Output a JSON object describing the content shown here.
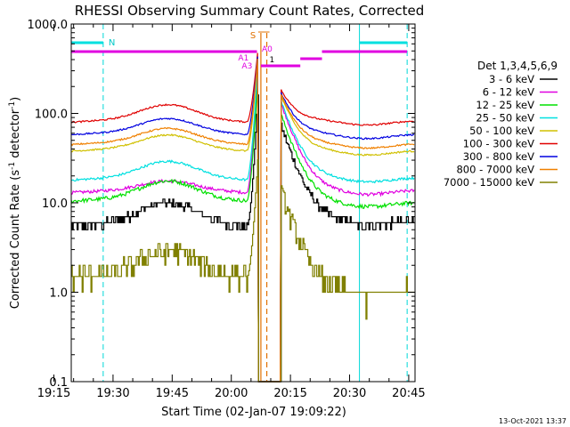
{
  "chart_data": {
    "type": "line",
    "title": "RHESSI Observing Summary Count Rates, Corrected",
    "xlabel": "Start Time (02-Jan-07 19:09:22)",
    "ylabel_main": "Corrected Count Rate (s",
    "ylabel_sup1": "-1",
    "ylabel_mid": " detector",
    "ylabel_sup2": "-1",
    "ylabel_end": ")",
    "footer": "13-Oct-2021 13:37",
    "y_scale": "log",
    "ylim": [
      0.1,
      1000
    ],
    "xlim_minutes": [
      19.4,
      46.6
    ],
    "x_ticks": [
      {
        "t": 15,
        "label": "19:15"
      },
      {
        "t": 30,
        "label": "19:30"
      },
      {
        "t": 45,
        "label": "19:45"
      },
      {
        "t": 60,
        "label": "20:00"
      },
      {
        "t": 75,
        "label": "20:15"
      },
      {
        "t": 90,
        "label": "20:30"
      },
      {
        "t": 105,
        "label": "20:45"
      }
    ],
    "y_ticks": [
      {
        "v": 1000,
        "label": "1000.0"
      },
      {
        "v": 100,
        "label": "100.0"
      },
      {
        "v": 10,
        "label": "10.0"
      },
      {
        "v": 1,
        "label": "1.0"
      },
      {
        "v": 0.1,
        "label": "0.1"
      }
    ],
    "legend_title": "Det 1,3,4,5,6,9",
    "legend_position": "right",
    "series": [
      {
        "name": "3 - 6 keV",
        "color": "#000000",
        "base": 5.5,
        "hump": 1.7,
        "noise": 0.1,
        "peak": 220,
        "post": 6,
        "step": true
      },
      {
        "name": "6 - 12 keV",
        "color": "#e000e0",
        "base": 13,
        "hump": 1.25,
        "noise": 0.04,
        "peak": 400,
        "post": 13,
        "step": false
      },
      {
        "name": "12 - 25 keV",
        "color": "#00e000",
        "base": 10.5,
        "hump": 1.55,
        "noise": 0.05,
        "peak": 300,
        "post": 9.5,
        "step": false
      },
      {
        "name": "25 - 50 keV",
        "color": "#00e0e0",
        "base": 18,
        "hump": 1.5,
        "noise": 0.03,
        "peak": 420,
        "post": 18,
        "step": false
      },
      {
        "name": "50 - 100 keV",
        "color": "#d0c000",
        "base": 38,
        "hump": 1.4,
        "noise": 0.02,
        "peak": 480,
        "post": 36,
        "step": false
      },
      {
        "name": "100 - 300 keV",
        "color": "#e00000",
        "base": 80,
        "hump": 1.45,
        "noise": 0.02,
        "peak": 560,
        "post": 78,
        "step": false
      },
      {
        "name": "300 - 800 keV",
        "color": "#0000e0",
        "base": 58,
        "hump": 1.4,
        "noise": 0.02,
        "peak": 520,
        "post": 55,
        "step": false
      },
      {
        "name": "800 - 7000 keV",
        "color": "#f08000",
        "base": 45,
        "hump": 1.4,
        "noise": 0.02,
        "peak": 500,
        "post": 43,
        "step": false
      },
      {
        "name": "7000 - 15000 keV",
        "color": "#808000",
        "base": 1.5,
        "hump": 1.8,
        "noise": 0.25,
        "peak": 40,
        "post": 1.0,
        "step": true
      }
    ],
    "annotations": {
      "night_label": "N",
      "saa_label": "S",
      "attenuator_labels": [
        "A1",
        "A3",
        "A0",
        "1"
      ],
      "night_bars": [
        {
          "t0": 19.4,
          "t1": 27.5
        },
        {
          "t0": 92.5,
          "t1": 104.6
        }
      ],
      "attenuator_bars": [
        {
          "t0": 19.4,
          "t1": 66.5,
          "y": 0
        },
        {
          "t0": 67.5,
          "t1": 77.5,
          "y": 2
        },
        {
          "t0": 77.5,
          "t1": 83,
          "y": 1
        },
        {
          "t0": 83,
          "t1": 104.6,
          "y": 0
        }
      ],
      "night_lines": [
        19.4,
        27.5,
        92.5,
        104.6
      ],
      "flare_lines": [
        {
          "t": 67.5,
          "color": "#e07000",
          "dash": false
        },
        {
          "t": 69,
          "color": "#e07000",
          "dash": true
        }
      ]
    }
  }
}
